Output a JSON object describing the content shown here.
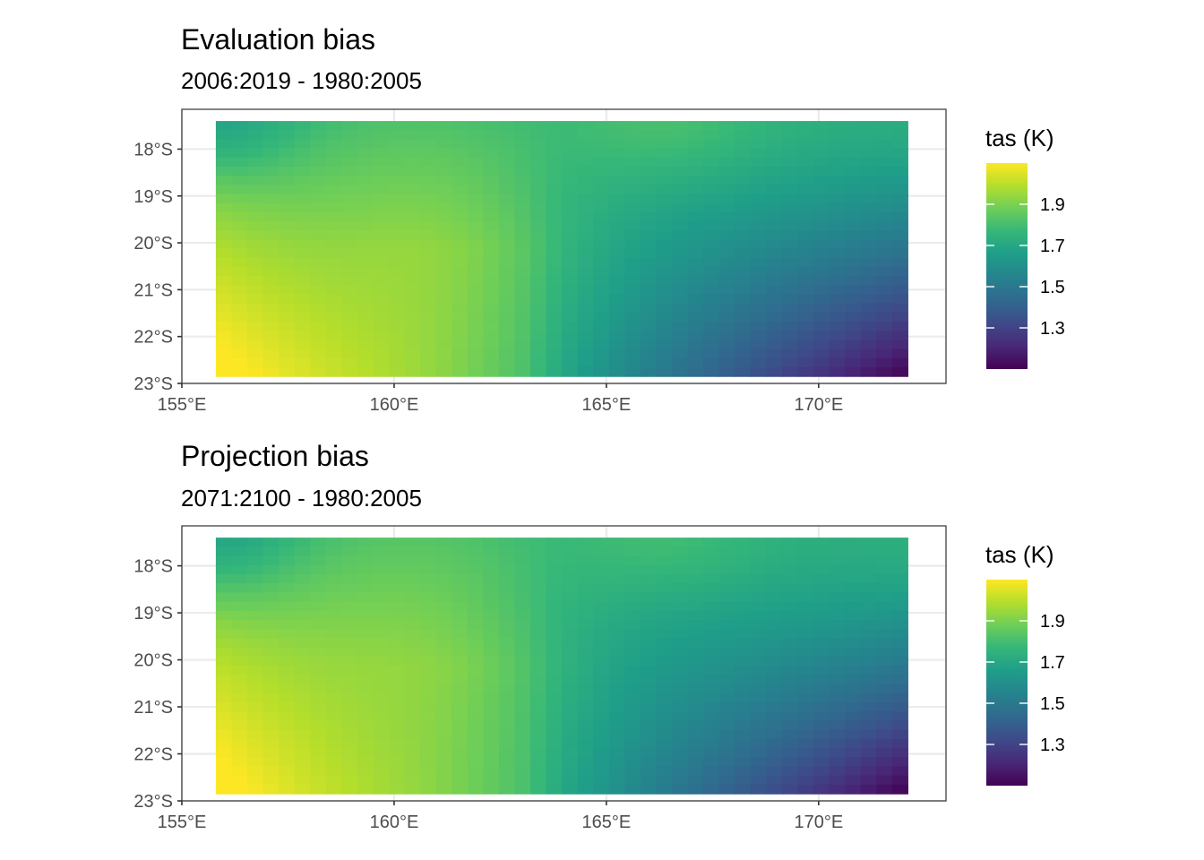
{
  "chart_data": [
    {
      "type": "heatmap",
      "title": "Evaluation bias",
      "subtitle": "2006:2019 - 1980:2005",
      "xlabel": "",
      "ylabel": "",
      "x_ticks": [
        "155°E",
        "160°E",
        "165°E",
        "170°E"
      ],
      "x_tick_values": [
        155,
        160,
        165,
        170
      ],
      "y_ticks": [
        "18°S",
        "19°S",
        "20°S",
        "21°S",
        "22°S",
        "23°S"
      ],
      "y_tick_values": [
        -18,
        -19,
        -20,
        -21,
        -22,
        -23
      ],
      "xlim": [
        155,
        173
      ],
      "ylim": [
        -23,
        -17.15
      ],
      "data_extent": {
        "lon": [
          155.8,
          172.1
        ],
        "lat": [
          -22.85,
          -17.4
        ]
      },
      "grid": true,
      "colormap": "viridis",
      "legend": {
        "title": "tas (K)",
        "position": "right",
        "ticks": [
          "1.9",
          "1.7",
          "1.5",
          "1.3"
        ],
        "tick_values": [
          1.9,
          1.7,
          1.5,
          1.3
        ],
        "range": [
          1.1,
          2.1
        ]
      },
      "cells_description": {
        "cols": 44,
        "rows": 28,
        "value_range": [
          1.1,
          2.1
        ]
      }
    },
    {
      "type": "heatmap",
      "title": "Projection bias",
      "subtitle": "2071:2100 - 1980:2005",
      "xlabel": "",
      "ylabel": "",
      "x_ticks": [
        "155°E",
        "160°E",
        "165°E",
        "170°E"
      ],
      "x_tick_values": [
        155,
        160,
        165,
        170
      ],
      "y_ticks": [
        "18°S",
        "19°S",
        "20°S",
        "21°S",
        "22°S",
        "23°S"
      ],
      "y_tick_values": [
        -18,
        -19,
        -20,
        -21,
        -22,
        -23
      ],
      "xlim": [
        155,
        173
      ],
      "ylim": [
        -23,
        -17.15
      ],
      "data_extent": {
        "lon": [
          155.8,
          172.1
        ],
        "lat": [
          -22.85,
          -17.4
        ]
      },
      "grid": true,
      "colormap": "viridis",
      "legend": {
        "title": "tas (K)",
        "position": "right",
        "ticks": [
          "1.9",
          "1.7",
          "1.5",
          "1.3"
        ],
        "tick_values": [
          1.9,
          1.7,
          1.5,
          1.3
        ],
        "range": [
          1.1,
          2.1
        ]
      },
      "cells_description": {
        "cols": 44,
        "rows": 28,
        "value_range": [
          1.1,
          2.1
        ]
      }
    }
  ],
  "colors": {
    "grid": "#ebebeb",
    "panel_border": "#333333",
    "tick_text": "#4d4d4d",
    "viridis": [
      "#440154",
      "#482878",
      "#3e4a89",
      "#31688e",
      "#26828e",
      "#1f9e89",
      "#35b779",
      "#6ece58",
      "#b5de2b",
      "#fde725"
    ]
  }
}
